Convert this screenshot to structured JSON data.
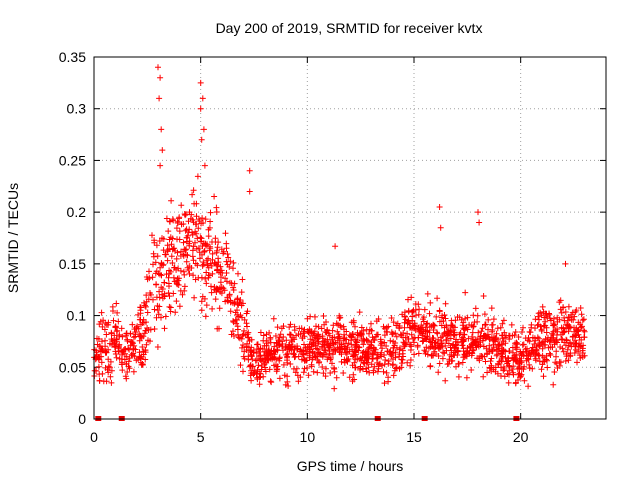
{
  "chart_data": {
    "type": "scatter",
    "title": "Day 200 of 2019, SRMTID for receiver kvtx",
    "xlabel": "GPS time / hours",
    "ylabel": "SRMTID / TECUs",
    "xlim": [
      0,
      24
    ],
    "ylim": [
      0,
      0.35
    ],
    "xticks": [
      0,
      5,
      10,
      15,
      20
    ],
    "xtick_labels": [
      "0",
      "5",
      "10",
      "15",
      "20"
    ],
    "yticks": [
      0,
      0.05,
      0.1,
      0.15,
      0.2,
      0.25,
      0.3,
      0.35
    ],
    "ytick_labels": [
      "0",
      "0.05",
      "0.1",
      "0.15",
      "0.2",
      "0.25",
      "0.3",
      "0.35"
    ],
    "grid": true,
    "marker": "+",
    "series": [
      {
        "name": "SRMTID",
        "color": "#ff0000",
        "profile": [
          {
            "x": 0.0,
            "mean": 0.06,
            "spread": 0.02
          },
          {
            "x": 0.5,
            "mean": 0.07,
            "spread": 0.03
          },
          {
            "x": 1.0,
            "mean": 0.075,
            "spread": 0.03
          },
          {
            "x": 1.5,
            "mean": 0.065,
            "spread": 0.025
          },
          {
            "x": 2.0,
            "mean": 0.07,
            "spread": 0.03
          },
          {
            "x": 2.5,
            "mean": 0.1,
            "spread": 0.04
          },
          {
            "x": 3.0,
            "mean": 0.14,
            "spread": 0.05
          },
          {
            "x": 3.5,
            "mean": 0.15,
            "spread": 0.05
          },
          {
            "x": 4.0,
            "mean": 0.16,
            "spread": 0.05
          },
          {
            "x": 4.5,
            "mean": 0.165,
            "spread": 0.05
          },
          {
            "x": 5.0,
            "mean": 0.17,
            "spread": 0.05
          },
          {
            "x": 5.5,
            "mean": 0.15,
            "spread": 0.05
          },
          {
            "x": 6.0,
            "mean": 0.14,
            "spread": 0.045
          },
          {
            "x": 6.5,
            "mean": 0.12,
            "spread": 0.04
          },
          {
            "x": 7.0,
            "mean": 0.09,
            "spread": 0.035
          },
          {
            "x": 7.5,
            "mean": 0.05,
            "spread": 0.02
          },
          {
            "x": 8.0,
            "mean": 0.06,
            "spread": 0.025
          },
          {
            "x": 9.0,
            "mean": 0.065,
            "spread": 0.025
          },
          {
            "x": 10.0,
            "mean": 0.07,
            "spread": 0.025
          },
          {
            "x": 11.0,
            "mean": 0.075,
            "spread": 0.03
          },
          {
            "x": 12.0,
            "mean": 0.07,
            "spread": 0.025
          },
          {
            "x": 13.0,
            "mean": 0.065,
            "spread": 0.025
          },
          {
            "x": 14.0,
            "mean": 0.07,
            "spread": 0.025
          },
          {
            "x": 15.0,
            "mean": 0.085,
            "spread": 0.03
          },
          {
            "x": 16.0,
            "mean": 0.08,
            "spread": 0.03
          },
          {
            "x": 17.0,
            "mean": 0.075,
            "spread": 0.03
          },
          {
            "x": 18.0,
            "mean": 0.08,
            "spread": 0.03
          },
          {
            "x": 19.0,
            "mean": 0.065,
            "spread": 0.025
          },
          {
            "x": 20.0,
            "mean": 0.06,
            "spread": 0.025
          },
          {
            "x": 21.0,
            "mean": 0.075,
            "spread": 0.03
          },
          {
            "x": 22.0,
            "mean": 0.085,
            "spread": 0.03
          },
          {
            "x": 23.0,
            "mean": 0.08,
            "spread": 0.025
          }
        ],
        "peaks": [
          {
            "x": 3.0,
            "y": 0.34
          },
          {
            "x": 3.1,
            "y": 0.33
          },
          {
            "x": 3.05,
            "y": 0.31
          },
          {
            "x": 3.15,
            "y": 0.28
          },
          {
            "x": 3.2,
            "y": 0.26
          },
          {
            "x": 3.1,
            "y": 0.245
          },
          {
            "x": 5.0,
            "y": 0.325
          },
          {
            "x": 5.1,
            "y": 0.31
          },
          {
            "x": 5.0,
            "y": 0.3
          },
          {
            "x": 5.15,
            "y": 0.28
          },
          {
            "x": 5.05,
            "y": 0.27
          },
          {
            "x": 5.2,
            "y": 0.245
          },
          {
            "x": 7.3,
            "y": 0.24
          },
          {
            "x": 7.3,
            "y": 0.22
          },
          {
            "x": 11.3,
            "y": 0.167
          },
          {
            "x": 16.2,
            "y": 0.205
          },
          {
            "x": 16.25,
            "y": 0.185
          },
          {
            "x": 18.0,
            "y": 0.2
          },
          {
            "x": 18.05,
            "y": 0.19
          },
          {
            "x": 22.1,
            "y": 0.15
          }
        ]
      }
    ],
    "baseline_markers_x": [
      0.2,
      1.3,
      13.3,
      15.5,
      19.8
    ]
  }
}
